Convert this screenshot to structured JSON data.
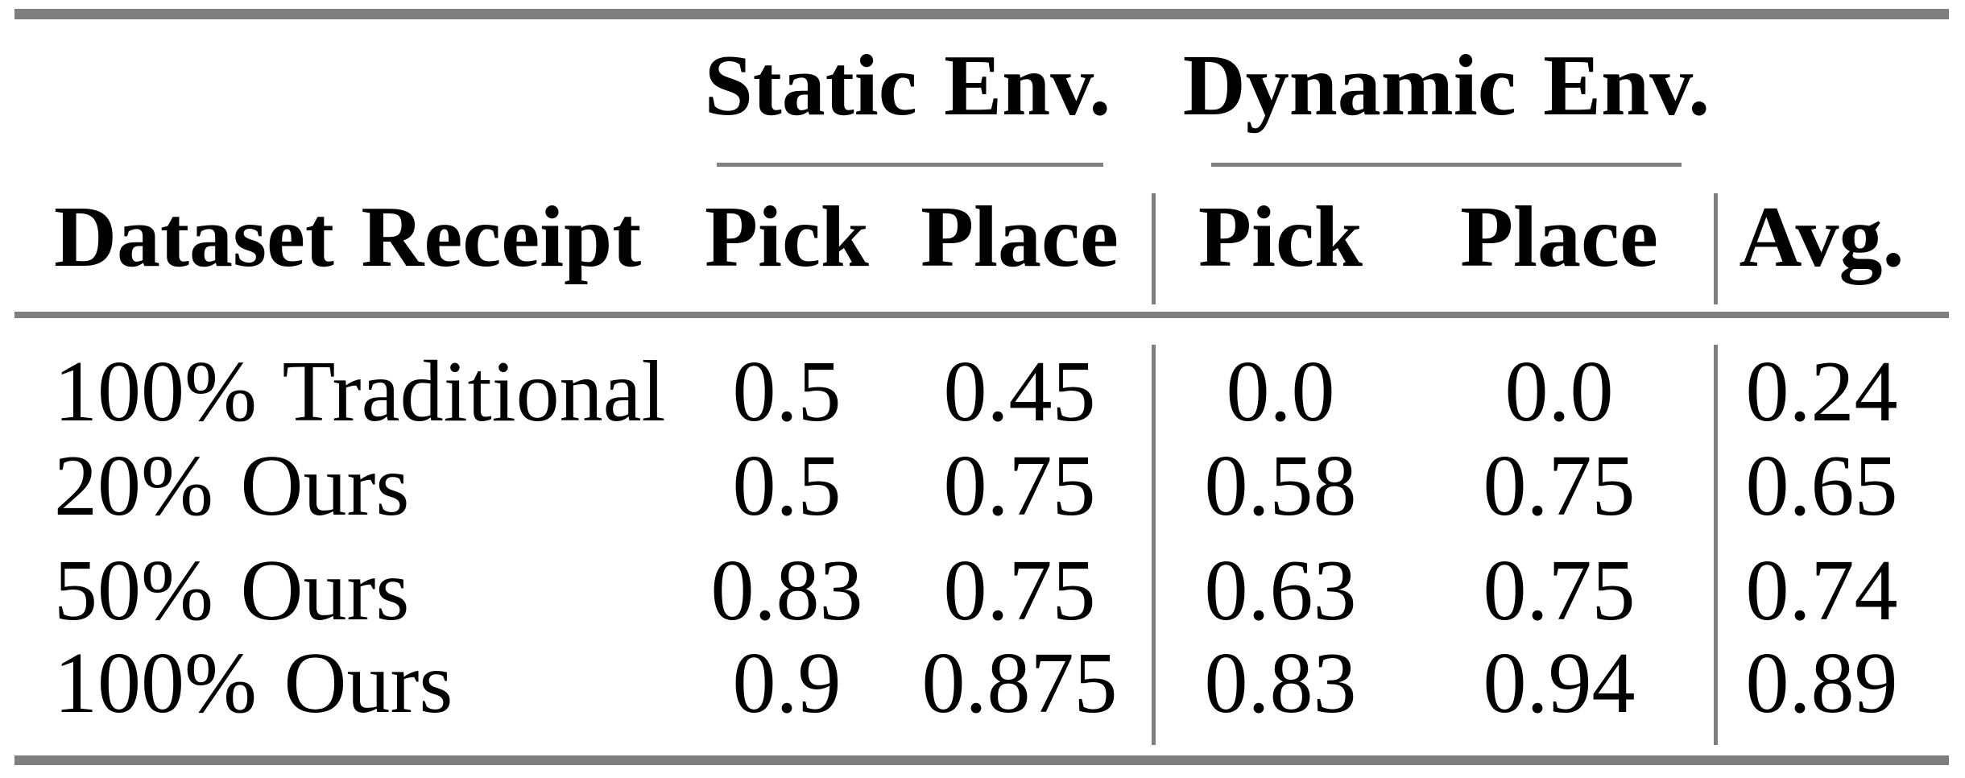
{
  "colors": {
    "rule_gray": "#7f7f7f",
    "text": "#000000",
    "background": "#ffffff"
  },
  "table": {
    "groups": [
      {
        "label": "Static Env."
      },
      {
        "label": "Dynamic Env."
      }
    ],
    "columns": [
      "Dataset Receipt",
      "Pick",
      "Place",
      "Pick",
      "Place",
      "Avg."
    ],
    "rows": [
      {
        "cells": [
          "100% Traditional",
          "0.5",
          "0.45",
          "0.0",
          "0.0",
          "0.24"
        ]
      },
      {
        "cells": [
          "20% Ours",
          "0.5",
          "0.75",
          "0.58",
          "0.75",
          "0.65"
        ]
      },
      {
        "cells": [
          "50% Ours",
          "0.83",
          "0.75",
          "0.63",
          "0.75",
          "0.74"
        ]
      },
      {
        "cells": [
          "100% Ours",
          "0.9",
          "0.875",
          "0.83",
          "0.94",
          "0.89"
        ]
      }
    ]
  },
  "chart_data": {
    "type": "table",
    "column_groups": [
      {
        "label": "Static Env.",
        "columns": [
          "Pick",
          "Place"
        ]
      },
      {
        "label": "Dynamic Env.",
        "columns": [
          "Pick",
          "Place"
        ]
      }
    ],
    "columns": [
      "Dataset Receipt",
      "Static Pick",
      "Static Place",
      "Dynamic Pick",
      "Dynamic Place",
      "Avg."
    ],
    "rows": [
      [
        "100% Traditional",
        0.5,
        0.45,
        0.0,
        0.0,
        0.24
      ],
      [
        "20% Ours",
        0.5,
        0.75,
        0.58,
        0.75,
        0.65
      ],
      [
        "50% Ours",
        0.83,
        0.75,
        0.63,
        0.75,
        0.74
      ],
      [
        "100% Ours",
        0.9,
        0.875,
        0.83,
        0.94,
        0.89
      ]
    ]
  }
}
